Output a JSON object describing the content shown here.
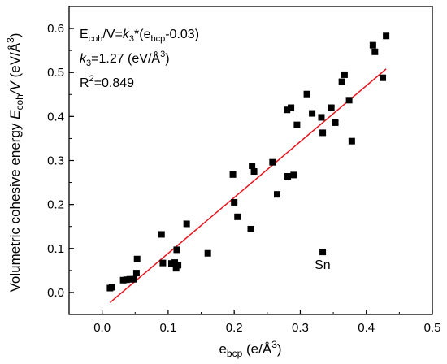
{
  "chart_data": {
    "type": "scatter",
    "xlabel": {
      "base": "e",
      "sub": "bcp",
      "unit": " (e/Å",
      "sup": "3",
      "close": ")"
    },
    "ylabel": {
      "pre": "Volumetric cohesive energy ",
      "base": "E",
      "sub": "coh",
      "mid": "/V",
      "unit": " (eV/Å",
      "sup": "3",
      "close": ")"
    },
    "xlim": [
      -0.05,
      0.5
    ],
    "ylim": [
      -0.05,
      0.65
    ],
    "xticks": [
      "0.0",
      "0.1",
      "0.2",
      "0.3",
      "0.4",
      "0.5"
    ],
    "xtick_values": [
      0.0,
      0.1,
      0.2,
      0.3,
      0.4,
      0.5
    ],
    "yticks": [
      "0.0",
      "0.1",
      "0.2",
      "0.3",
      "0.4",
      "0.5",
      "0.6"
    ],
    "ytick_values": [
      0.0,
      0.1,
      0.2,
      0.3,
      0.4,
      0.5,
      0.6
    ],
    "grid": false,
    "series": [
      {
        "marker": "square",
        "color": "#000000",
        "points": [
          [
            0.012,
            0.01
          ],
          [
            0.015,
            0.012
          ],
          [
            0.032,
            0.028
          ],
          [
            0.037,
            0.029
          ],
          [
            0.042,
            0.03
          ],
          [
            0.048,
            0.03
          ],
          [
            0.052,
            0.044
          ],
          [
            0.053,
            0.076
          ],
          [
            0.09,
            0.132
          ],
          [
            0.092,
            0.067
          ],
          [
            0.105,
            0.066
          ],
          [
            0.11,
            0.068
          ],
          [
            0.112,
            0.055
          ],
          [
            0.113,
            0.097
          ],
          [
            0.115,
            0.062
          ],
          [
            0.128,
            0.156
          ],
          [
            0.16,
            0.089
          ],
          [
            0.198,
            0.268
          ],
          [
            0.2,
            0.205
          ],
          [
            0.205,
            0.172
          ],
          [
            0.225,
            0.144
          ],
          [
            0.227,
            0.288
          ],
          [
            0.23,
            0.275
          ],
          [
            0.258,
            0.296
          ],
          [
            0.265,
            0.223
          ],
          [
            0.28,
            0.415
          ],
          [
            0.281,
            0.264
          ],
          [
            0.286,
            0.42
          ],
          [
            0.29,
            0.267
          ],
          [
            0.295,
            0.381
          ],
          [
            0.31,
            0.451
          ],
          [
            0.318,
            0.407
          ],
          [
            0.332,
            0.398
          ],
          [
            0.334,
            0.363
          ],
          [
            0.334,
            0.092
          ],
          [
            0.347,
            0.42
          ],
          [
            0.353,
            0.386
          ],
          [
            0.363,
            0.479
          ],
          [
            0.367,
            0.495
          ],
          [
            0.374,
            0.437
          ],
          [
            0.378,
            0.344
          ],
          [
            0.41,
            0.562
          ],
          [
            0.413,
            0.547
          ],
          [
            0.425,
            0.488
          ],
          [
            0.43,
            0.583
          ]
        ]
      }
    ],
    "fit_line": {
      "x_range": [
        0.012,
        0.43
      ],
      "slope": 1.27,
      "offset": 0.03,
      "color_start": "#6b4a00",
      "color_end": "#e8141e"
    },
    "annotations": {
      "eq": {
        "base": "E",
        "sub1": "coh",
        "mid": "/V=",
        "k": "k",
        "ksub": "3",
        "tail1": "*(e",
        "sub2": "bcp",
        "tail2": "-0.03)"
      },
      "k": {
        "k": "k",
        "ksub": "3",
        "tail": "=1.27 (eV/Å",
        "sup": "3",
        "close": ")"
      },
      "r2": {
        "base": "R",
        "sup": "2",
        "tail": "=0.849"
      },
      "sn": {
        "text": "Sn",
        "x": 0.334,
        "y": 0.092
      }
    }
  }
}
